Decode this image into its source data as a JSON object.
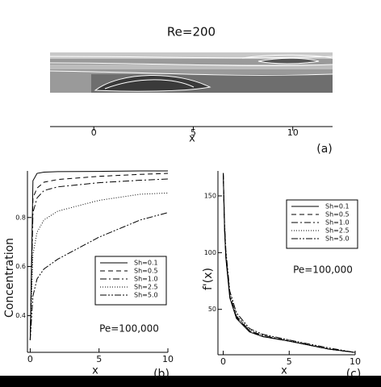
{
  "chart_data": [
    {
      "type": "streamline",
      "title": "Re=200",
      "xlabel": "x",
      "panel_label": "(a)",
      "xlim": [
        -2.2,
        12
      ],
      "xticks": [
        0,
        5,
        10
      ]
    },
    {
      "type": "line",
      "xlabel": "x",
      "ylabel": "Concentration",
      "annotation": "Pe=100,000",
      "panel_label": "(b)",
      "xlim": [
        -0.2,
        10
      ],
      "ylim": [
        0.25,
        0.99
      ],
      "xticks": [
        0,
        5,
        10
      ],
      "yticks": [
        0.4,
        0.6,
        0.8
      ],
      "x": [
        0,
        0.2,
        0.5,
        1,
        2,
        5,
        8,
        10
      ],
      "series": [
        {
          "name": "Sh=0.1",
          "color": "#000000",
          "line_style": "solid",
          "values": [
            0.3,
            0.95,
            0.98,
            0.985,
            0.987,
            0.988,
            0.99,
            0.99
          ]
        },
        {
          "name": "Sh=0.5",
          "color": "#000000",
          "line_style": "dashed",
          "values": [
            0.3,
            0.88,
            0.92,
            0.944,
            0.955,
            0.968,
            0.976,
            0.98
          ]
        },
        {
          "name": "Sh=1.0",
          "color": "#000000",
          "line_style": "dashdot",
          "values": [
            0.3,
            0.82,
            0.88,
            0.91,
            0.925,
            0.942,
            0.952,
            0.957
          ]
        },
        {
          "name": "Sh=2.5",
          "color": "#000000",
          "line_style": "dotted",
          "values": [
            0.3,
            0.65,
            0.74,
            0.79,
            0.826,
            0.87,
            0.895,
            0.9
          ]
        },
        {
          "name": "Sh=5.0",
          "color": "#000000",
          "line_style": "dashdotdot",
          "values": [
            0.3,
            0.48,
            0.55,
            0.59,
            0.63,
            0.72,
            0.79,
            0.82
          ]
        }
      ]
    },
    {
      "type": "line",
      "xlabel": "x",
      "ylabel": "f'(x)",
      "annotation": "Pe=100,000",
      "panel_label": "(c)",
      "xlim": [
        -0.4,
        10
      ],
      "ylim": [
        10,
        172
      ],
      "xticks": [
        0,
        5,
        10
      ],
      "yticks": [
        50,
        100,
        150
      ],
      "x": [
        0,
        0.1,
        0.2,
        0.5,
        1,
        2,
        3,
        5,
        8,
        10
      ],
      "series": [
        {
          "name": "Sh=0.1",
          "color": "#000000",
          "line_style": "solid",
          "values": [
            170,
            120,
            95,
            60,
            42,
            30,
            26,
            22,
            15,
            12
          ]
        },
        {
          "name": "Sh=0.5",
          "color": "#000000",
          "line_style": "dashed",
          "values": [
            170,
            121,
            96,
            61,
            43,
            31,
            26,
            22,
            15,
            12
          ]
        },
        {
          "name": "Sh=1.0",
          "color": "#000000",
          "line_style": "dashdot",
          "values": [
            170,
            123,
            98,
            62,
            44,
            31,
            27,
            22,
            15,
            12
          ]
        },
        {
          "name": "Sh=2.5",
          "color": "#000000",
          "line_style": "dotted",
          "values": [
            170,
            125,
            100,
            64,
            45,
            32,
            27,
            23,
            15,
            12
          ]
        },
        {
          "name": "Sh=5.0",
          "color": "#000000",
          "line_style": "dashdotdot",
          "values": [
            170,
            127,
            102,
            66,
            47,
            33,
            28,
            23,
            16,
            12
          ]
        }
      ]
    }
  ]
}
